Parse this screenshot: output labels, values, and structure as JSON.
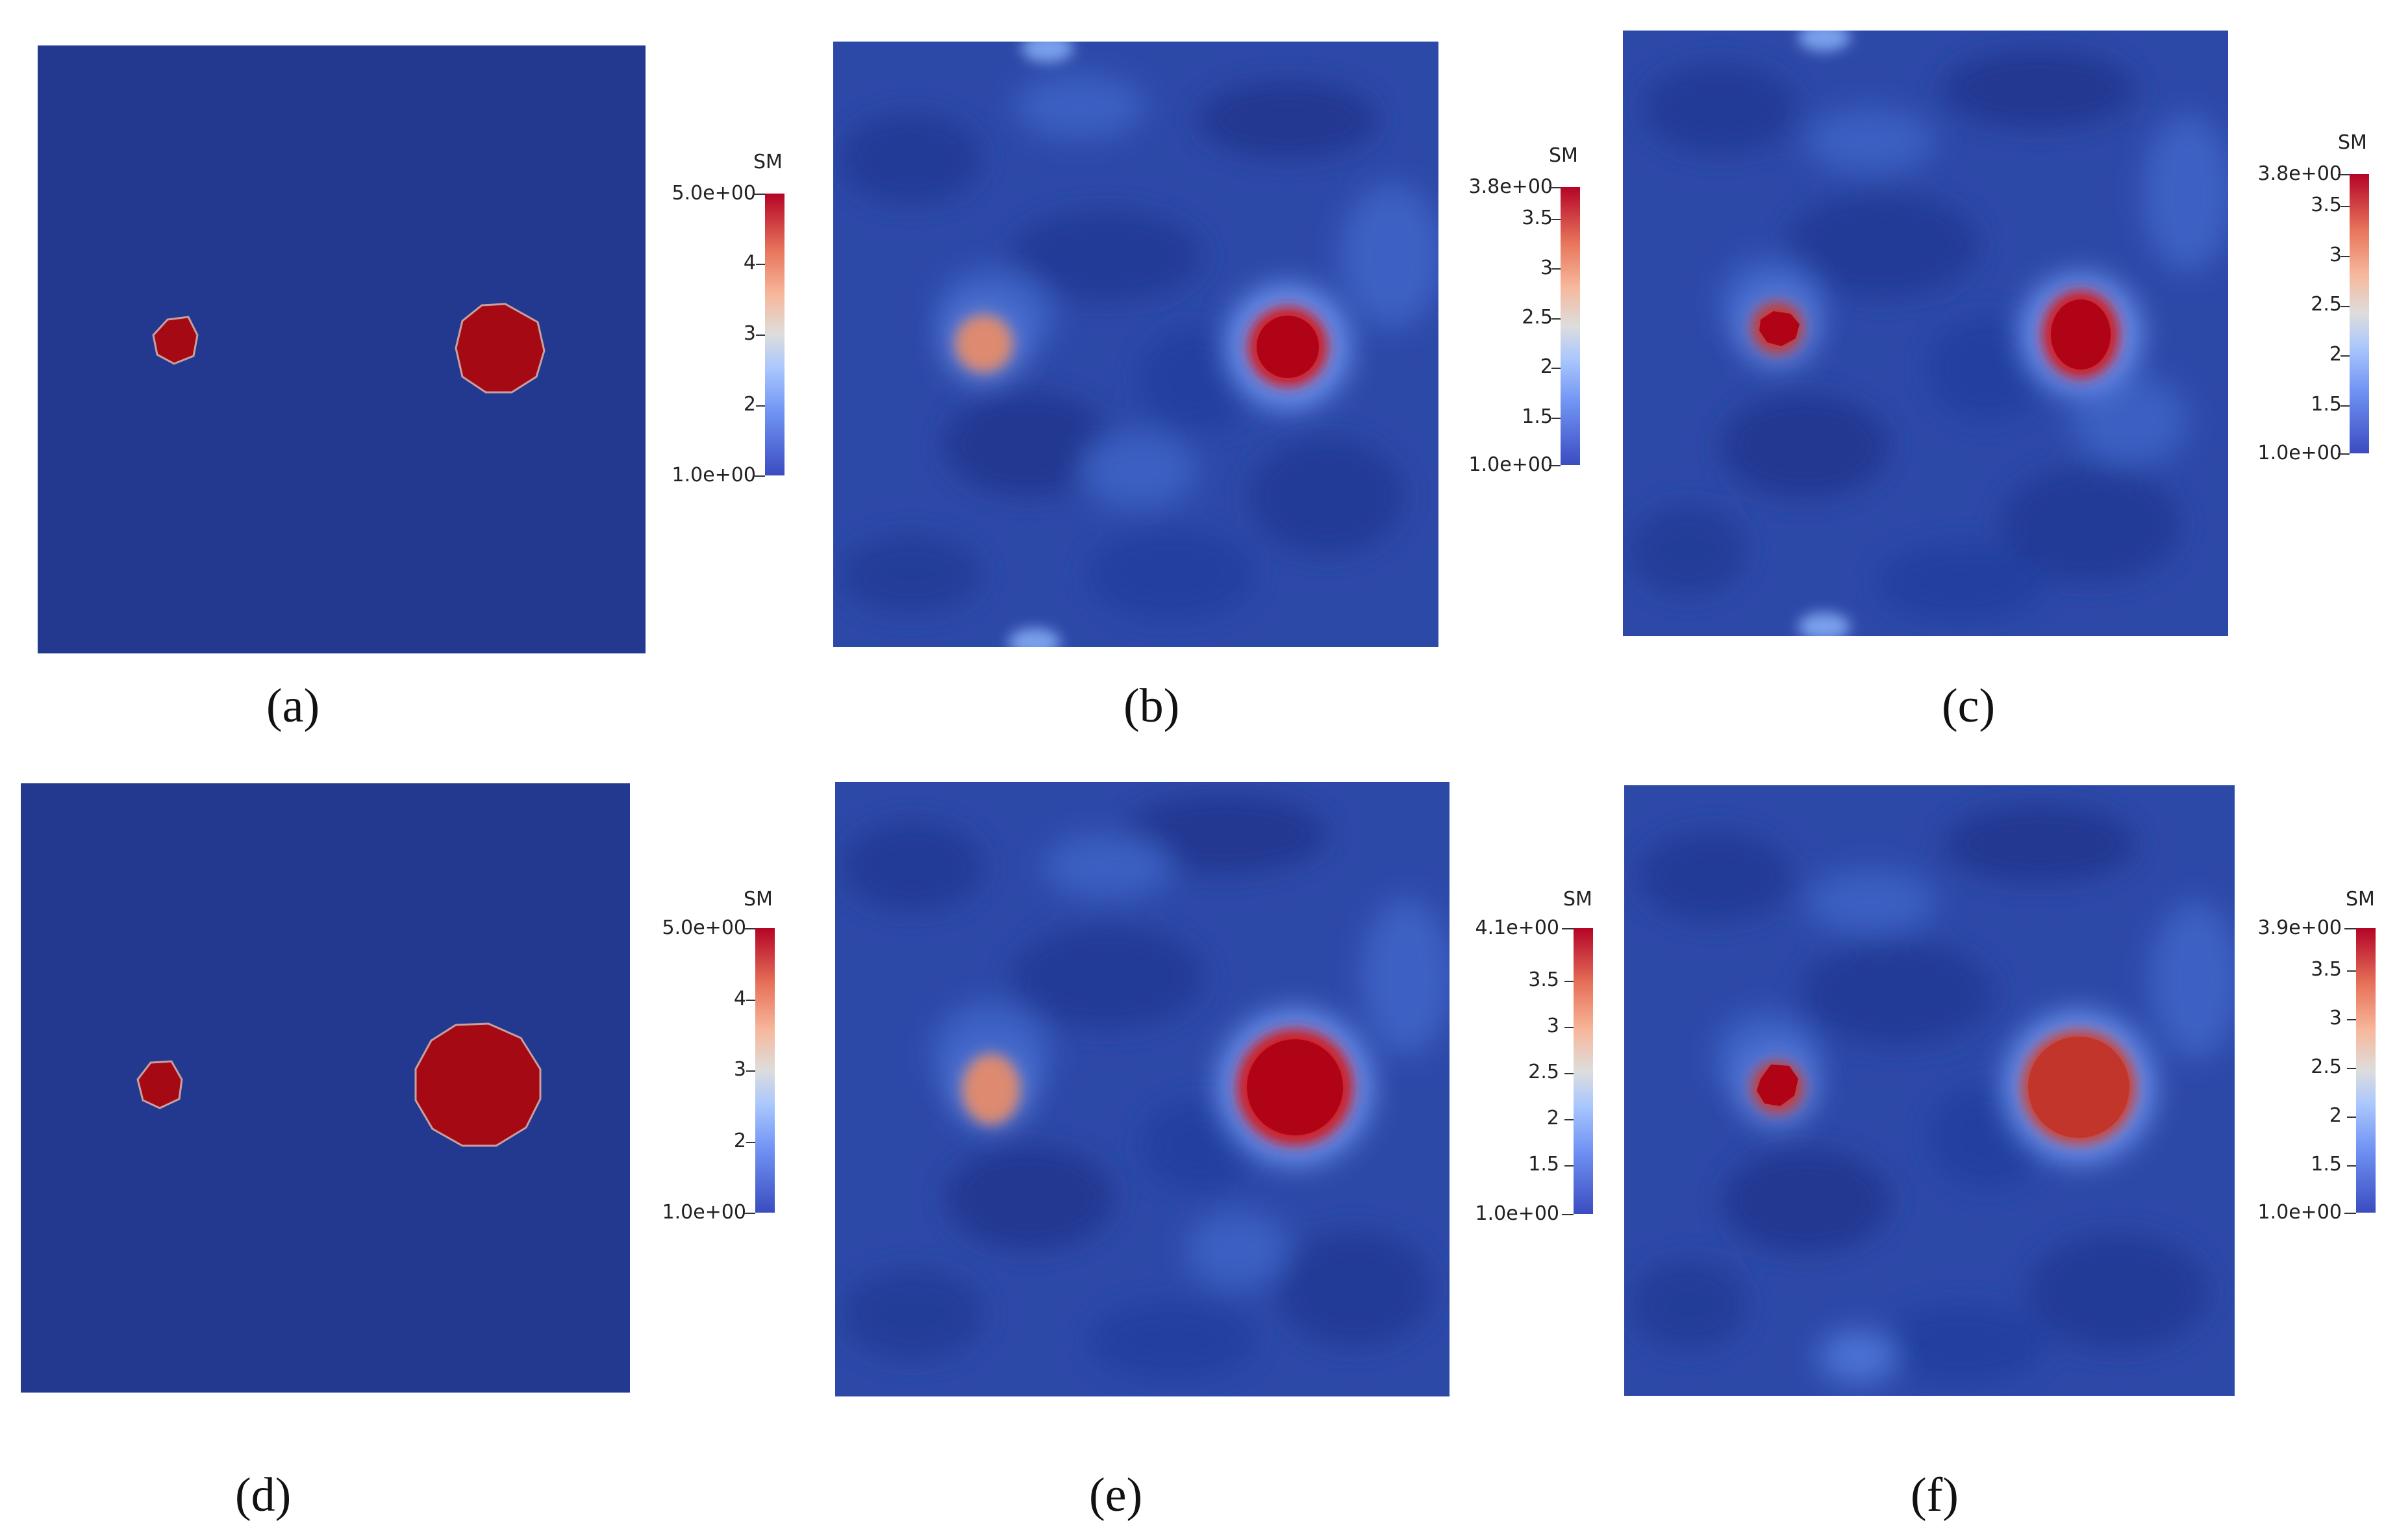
{
  "colormap": {
    "low": "#3b4cc0",
    "mid": "#dddddd",
    "high": "#b40426",
    "background": "#22398f"
  },
  "panels": [
    {
      "caption": "(a)",
      "variable": "SM",
      "max_label": "5.0e+00",
      "min_label": "1.0e+00",
      "ticks": [
        "4",
        "3",
        "2"
      ],
      "style": "initial"
    },
    {
      "caption": "(b)",
      "variable": "SM",
      "max_label": "3.8e+00",
      "min_label": "1.0e+00",
      "ticks": [
        "3.5",
        "3",
        "2.5",
        "2",
        "1.5"
      ],
      "style": "noisy"
    },
    {
      "caption": "(c)",
      "variable": "SM",
      "max_label": "3.8e+00",
      "min_label": "1.0e+00",
      "ticks": [
        "3.5",
        "3",
        "2.5",
        "2",
        "1.5"
      ],
      "style": "noisy"
    },
    {
      "caption": "(d)",
      "variable": "SM",
      "max_label": "5.0e+00",
      "min_label": "1.0e+00",
      "ticks": [
        "4",
        "3",
        "2"
      ],
      "style": "initial"
    },
    {
      "caption": "(e)",
      "variable": "SM",
      "max_label": "4.1e+00",
      "min_label": "1.0e+00",
      "ticks": [
        "3.5",
        "3",
        "2.5",
        "2",
        "1.5"
      ],
      "style": "noisy"
    },
    {
      "caption": "(f)",
      "variable": "SM",
      "max_label": "3.9e+00",
      "min_label": "1.0e+00",
      "ticks": [
        "3.5",
        "3",
        "2.5",
        "2",
        "1.5"
      ],
      "style": "noisy"
    }
  ]
}
